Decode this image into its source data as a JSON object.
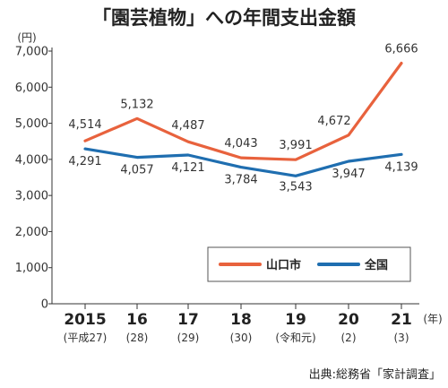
{
  "chart_data": {
    "type": "line",
    "title": "「園芸植物」への年間支出金額",
    "y_unit": "(円)",
    "x_unit": "(年)",
    "categories": [
      "2015",
      "16",
      "17",
      "18",
      "19",
      "20",
      "21"
    ],
    "sub_categories": [
      "(平成27)",
      "(28)",
      "(29)",
      "(30)",
      "(令和元)",
      "(2)",
      "(3)"
    ],
    "ylim": [
      0,
      7000
    ],
    "yticks": [
      0,
      1000,
      2000,
      3000,
      4000,
      5000,
      6000,
      7000
    ],
    "ytick_labels": [
      "0",
      "1,000",
      "2,000",
      "3,000",
      "4,000",
      "5,000",
      "6,000",
      "7,000"
    ],
    "grid": false,
    "legend_position": "bottom-right",
    "series": [
      {
        "name": "山口市",
        "color": "#e8623d",
        "values": [
          4514,
          5132,
          4487,
          4043,
          3991,
          4672,
          6666
        ],
        "labels": [
          "4,514",
          "5,132",
          "4,487",
          "4,043",
          "3,991",
          "4,672",
          "6,666"
        ]
      },
      {
        "name": "全国",
        "color": "#1f6eb0",
        "values": [
          4291,
          4057,
          4121,
          3784,
          3543,
          3947,
          4139
        ],
        "labels": [
          "4,291",
          "4,057",
          "4,121",
          "3,784",
          "3,543",
          "3,947",
          "4,139"
        ]
      }
    ],
    "source": "出典:総務省「家計調査」"
  }
}
